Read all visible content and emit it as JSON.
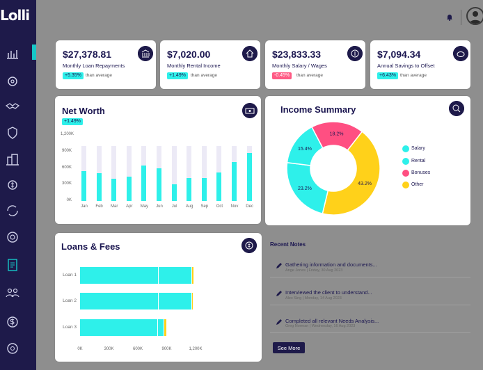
{
  "app": {
    "logo": "Lolli"
  },
  "sidebar": {
    "icons": [
      "bar-chart-icon",
      "settings-gear-icon",
      "handshake-icon",
      "shield-icon",
      "building-icon",
      "money-icon",
      "refresh-money-icon",
      "target-icon",
      "document-icon",
      "team-icon",
      "dollar-icon",
      "dollar-settings-icon"
    ]
  },
  "stats": [
    {
      "value": "$27,378.81",
      "label": "Monthly Loan Repayments",
      "badge": "+5.35%",
      "trend": "up",
      "than": "than average",
      "icon": "bank-icon"
    },
    {
      "value": "$7,020.00",
      "label": "Monthly Rental Income",
      "badge": "+1.49%",
      "trend": "up",
      "than": "than average",
      "icon": "house-icon"
    },
    {
      "value": "$23,833.33",
      "label": "Monthly Salary / Wages",
      "badge": "-0.45%",
      "trend": "down",
      "than": "than average",
      "icon": "dollar-coin-icon"
    },
    {
      "value": "$7,094.34",
      "label": "Annual Savings to Offset",
      "badge": "+6.43%",
      "trend": "up",
      "than": "than average",
      "icon": "piggy-bank-icon"
    }
  ],
  "net_worth": {
    "title": "Net Worth",
    "badge": "+1.49%"
  },
  "income_summary": {
    "title": "Income Summary",
    "legend": [
      "Salary",
      "Rental",
      "Bonuses",
      "Other"
    ]
  },
  "loans_fees": {
    "title": "Loans & Fees"
  },
  "recent_notes": {
    "title": "Recent Notes",
    "items": [
      {
        "title": "Gathering information and documents...",
        "meta": "Ange Jones | Friday, 30 Aug 2023"
      },
      {
        "title": "Interviewed the client to understand...",
        "meta": "Alex Sing | Monday, 14 Aug 2023"
      },
      {
        "title": "Completed all relevant Needs Analysis...",
        "meta": "Greg Norman | Wednesday, 16 Aug 2023"
      }
    ],
    "see_more": "See More"
  },
  "chart_data": [
    {
      "type": "bar",
      "title": "Net Worth",
      "categories": [
        "Jan",
        "Feb",
        "Mar",
        "Apr",
        "May",
        "Jun",
        "Jul",
        "Aug",
        "Sep",
        "Oct",
        "Nov",
        "Dec"
      ],
      "values": [
        540000,
        500000,
        410000,
        440000,
        640000,
        600000,
        300000,
        420000,
        420000,
        520000,
        710000,
        870000
      ],
      "background_values": [
        1000000,
        1000000,
        1000000,
        1000000,
        1000000,
        1000000,
        1000000,
        1000000,
        1000000,
        1000000,
        1000000,
        1000000
      ],
      "ylim": [
        0,
        1200000
      ],
      "yticks": [
        "0K",
        "300K",
        "600K",
        "900K",
        "1,200K"
      ],
      "colors": {
        "bar": "#2ef0ea",
        "background": "#eceaf6"
      }
    },
    {
      "type": "pie",
      "title": "Income Summary",
      "series": [
        {
          "name": "Salary",
          "value": 23.2,
          "label": "23.2%",
          "color": "#2ef0ea"
        },
        {
          "name": "Rental",
          "value": 15.4,
          "label": "15.4%",
          "color": "#2ef0ea"
        },
        {
          "name": "Bonuses",
          "value": 18.2,
          "label": "18.2%",
          "color": "#ff4f82"
        },
        {
          "name": "Other",
          "value": 43.2,
          "label": "43.2%",
          "color": "#ffd11a"
        }
      ]
    },
    {
      "type": "bar",
      "orientation": "horizontal",
      "title": "Loans & Fees",
      "categories": [
        "Loan 1",
        "Loan 2",
        "Loan 3"
      ],
      "series": [
        {
          "values": [
            810000,
            810000,
            800000
          ],
          "color": "#2ef0ea"
        },
        {
          "values": [
            350000,
            350000,
            70000
          ],
          "color": "#2ef0ea"
        },
        {
          "values": [
            20000,
            10000,
            25000
          ],
          "color": "#ffd11a"
        }
      ],
      "xlim": [
        0,
        1200000
      ],
      "xticks": [
        "0K",
        "300K",
        "600K",
        "900K",
        "1,200K"
      ]
    }
  ]
}
